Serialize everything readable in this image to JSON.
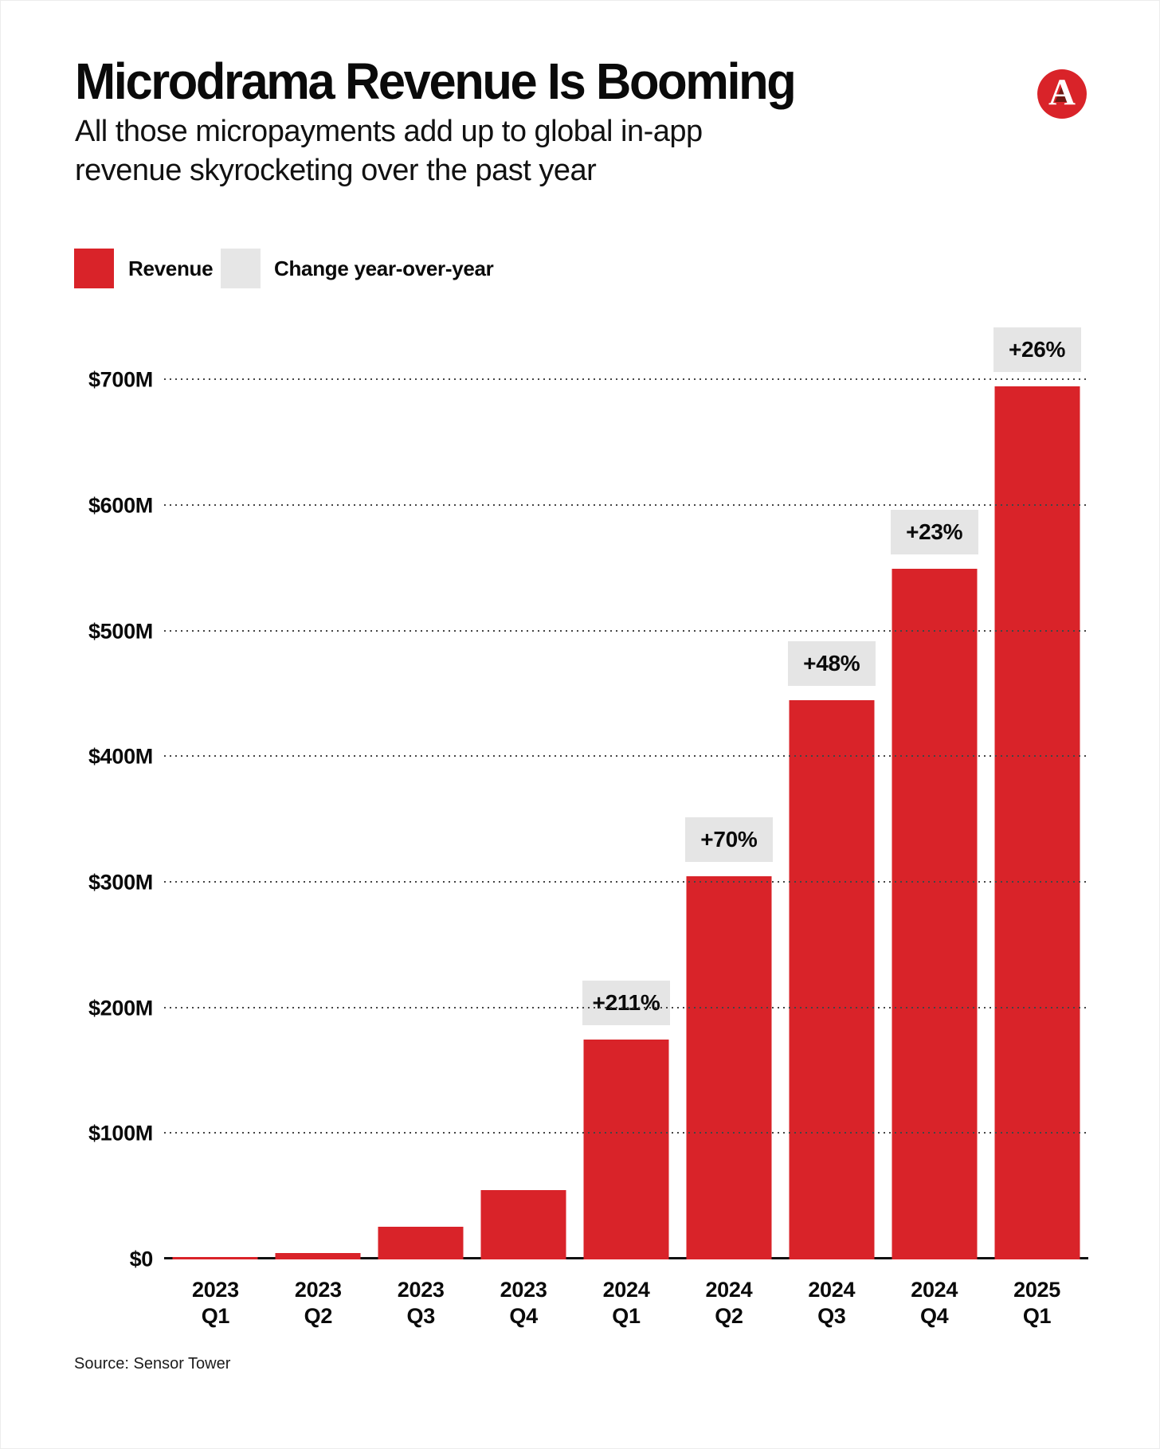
{
  "header": {
    "title": "Microdrama Revenue Is Booming",
    "subtitle_lines": {
      "0": "All those micropayments add up to global in-app",
      "1": "revenue skyrocketing over the past year"
    }
  },
  "logo": {
    "letter": "A",
    "circle_color": "#d92329",
    "counter_color": "#6e1a14",
    "letter_color": "#ffffff"
  },
  "legend": {
    "0": {
      "label": "Revenue",
      "color": "#d92329"
    },
    "1": {
      "label": "Change year-over-year",
      "color": "#e6e6e6"
    }
  },
  "chart_data": {
    "type": "bar",
    "title": "Microdrama Revenue Is Booming",
    "subtitle": "All those micropayments add up to global in-app revenue skyrocketing over the past year",
    "unit": "USD millions (global in-app revenue per quarter)",
    "categories": [
      {
        "year": "2023",
        "quarter": "Q1"
      },
      {
        "year": "2023",
        "quarter": "Q2"
      },
      {
        "year": "2023",
        "quarter": "Q3"
      },
      {
        "year": "2023",
        "quarter": "Q4"
      },
      {
        "year": "2024",
        "quarter": "Q1"
      },
      {
        "year": "2024",
        "quarter": "Q2"
      },
      {
        "year": "2024",
        "quarter": "Q3"
      },
      {
        "year": "2024",
        "quarter": "Q4"
      },
      {
        "year": "2025",
        "quarter": "Q1"
      }
    ],
    "series": [
      {
        "name": "Revenue",
        "values": [
          2,
          5,
          26,
          55,
          175,
          305,
          445,
          550,
          695
        ]
      }
    ],
    "change_labels": [
      null,
      null,
      null,
      null,
      "+211%",
      "+70%",
      "+48%",
      "+23%",
      "+26%"
    ],
    "yticks": [
      {
        "value": 0,
        "label": "$0"
      },
      {
        "value": 100,
        "label": "$100M"
      },
      {
        "value": 200,
        "label": "$200M"
      },
      {
        "value": 300,
        "label": "$300M"
      },
      {
        "value": 400,
        "label": "$400M"
      },
      {
        "value": 500,
        "label": "$500M"
      },
      {
        "value": 600,
        "label": "$600M"
      },
      {
        "value": 700,
        "label": "$700M"
      }
    ],
    "ylim": [
      0,
      748
    ],
    "grid": "dotted-horizontal",
    "legend_position": "top-left",
    "bar_color": "#d92329",
    "badge_color": "#e5e5e5"
  },
  "source": {
    "text": "Source: Sensor Tower"
  }
}
